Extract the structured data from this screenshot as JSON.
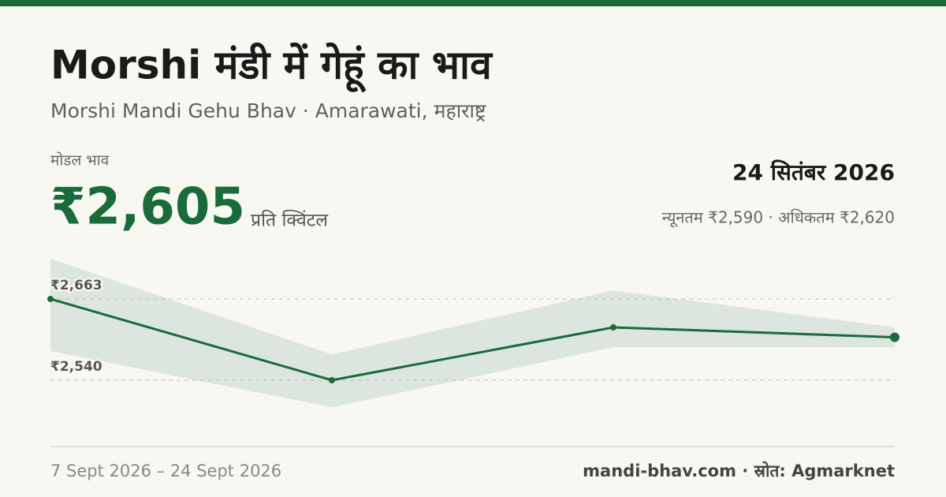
{
  "header": {
    "title": "Morshi मंडी में गेहूं का भाव",
    "subtitle": "Morshi Mandi Gehu Bhav · Amarawati, महाराष्ट्र"
  },
  "summary": {
    "modal_label": "मोडल भाव",
    "modal_price": "₹2,605",
    "unit": "प्रति क्विंटल",
    "date": "24 सितंबर 2026",
    "range": "न्यूनतम ₹2,590 · अधिकतम ₹2,620"
  },
  "chart_data": {
    "type": "line",
    "categories": [
      null,
      null,
      null,
      null
    ],
    "values": [
      2663,
      2540,
      2620,
      2605
    ],
    "band_high": [
      2724,
      2579,
      2676,
      2620
    ],
    "band_low": [
      2584,
      2499,
      2590,
      2590
    ],
    "color": "#1a6b3a",
    "band_color": "#dde6de",
    "ylim": [
      2440,
      2740
    ],
    "yticks": [
      {
        "value": 2663,
        "label": "₹2,663"
      },
      {
        "value": 2540,
        "label": "₹2,540"
      }
    ],
    "grid": true
  },
  "footer": {
    "period": "7 Sept 2026 – 24 Sept 2026",
    "source": "mandi-bhav.com · स्रोत: Agmarknet"
  }
}
